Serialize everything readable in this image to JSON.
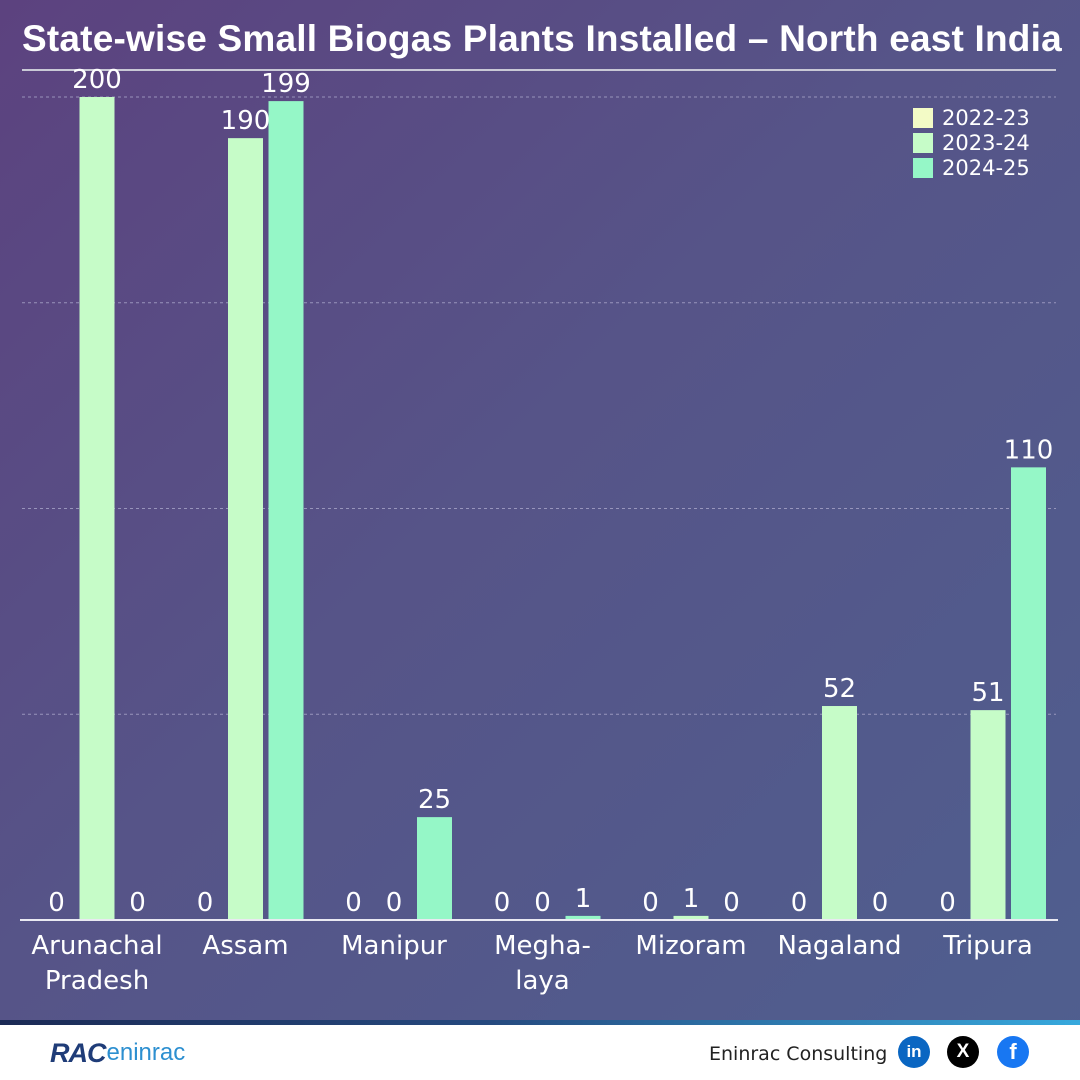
{
  "title": "State-wise Small Biogas Plants Installed – North east India",
  "chart_data": {
    "type": "bar",
    "title": "State-wise Small Biogas Plants Installed – North east India",
    "xlabel": "",
    "ylabel": "",
    "ylim": [
      0,
      200
    ],
    "grid": true,
    "legend_position": "top-right",
    "categories": [
      [
        "Arunachal",
        "Pradesh"
      ],
      [
        "Assam"
      ],
      [
        "Manipur"
      ],
      [
        "Megha-",
        "laya"
      ],
      [
        "Mizoram"
      ],
      [
        "Nagaland"
      ],
      [
        "Tripura"
      ]
    ],
    "series": [
      {
        "name": "2022-23",
        "color": "#f3fbc6",
        "values": [
          0,
          0,
          0,
          0,
          0,
          0,
          0
        ]
      },
      {
        "name": "2023-24",
        "color": "#c6fcc8",
        "values": [
          200,
          190,
          0,
          0,
          1,
          52,
          51
        ]
      },
      {
        "name": "2024-25",
        "color": "#95f7c7",
        "values": [
          0,
          199,
          25,
          1,
          0,
          0,
          110
        ]
      }
    ]
  },
  "footer": {
    "logo_primary": "RAC",
    "logo_secondary": "eninrac",
    "company": "Eninrac Consulting",
    "social": [
      {
        "name": "linkedin-icon",
        "glyph": "in"
      },
      {
        "name": "x-icon",
        "glyph": "X"
      },
      {
        "name": "facebook-icon",
        "glyph": "f"
      }
    ]
  }
}
